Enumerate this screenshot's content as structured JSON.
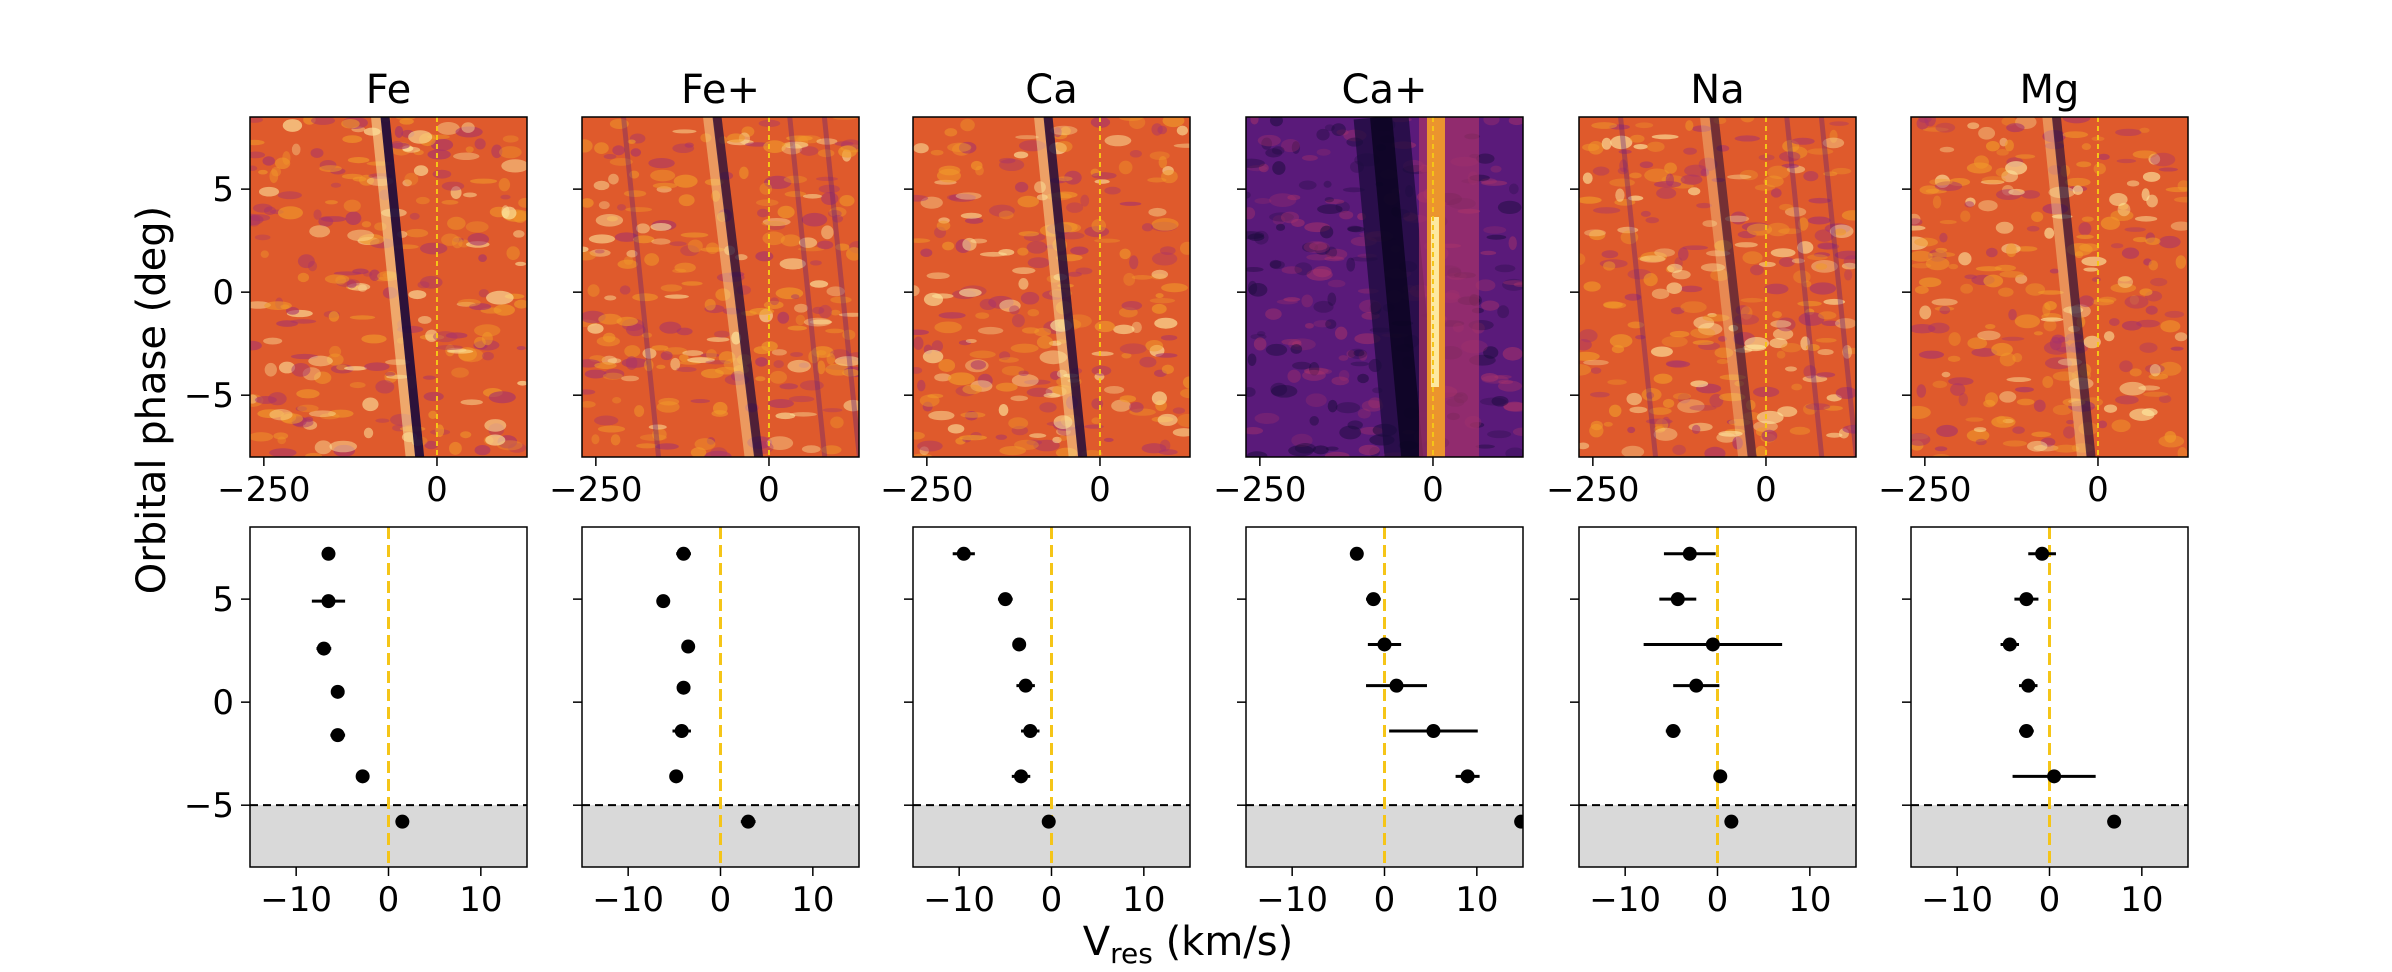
{
  "figure": {
    "ylabel": "Orbital phase (deg)",
    "xlabel_main": "V",
    "xlabel_sub": "res",
    "xlabel_unit": " (km/s)"
  },
  "colors": {
    "zero_line": "#f5c518",
    "points": "#000000",
    "shade": "#d9d9d9",
    "colormap": [
      "#1a0b3c",
      "#5a1a7a",
      "#a8336a",
      "#df5a2c",
      "#f09a2a",
      "#fde9a0"
    ]
  },
  "chart_data": [
    {
      "type": "heatmap",
      "title": "Fe",
      "xlim": [
        -270,
        130
      ],
      "ylim": [
        -8,
        8.5
      ],
      "xticks": [
        "-250",
        "0"
      ],
      "yticks": [
        "-5",
        "0",
        "5"
      ],
      "trail": {
        "v_at_top": -75,
        "v_at_bottom": -25,
        "kind": "absorption",
        "strength": 1.0
      },
      "background": "orange"
    },
    {
      "type": "heatmap",
      "title": "Fe+",
      "xlim": [
        -270,
        130
      ],
      "ylim": [
        -8,
        8.5
      ],
      "xticks": [
        "-250",
        "0"
      ],
      "yticks": [
        "-5",
        "0",
        "5"
      ],
      "trail": {
        "v_at_top": -75,
        "v_at_bottom": -15,
        "kind": "absorption",
        "strength": 0.8
      },
      "background": "orange"
    },
    {
      "type": "heatmap",
      "title": "Ca",
      "xlim": [
        -270,
        130
      ],
      "ylim": [
        -8,
        8.5
      ],
      "xticks": [
        "-250",
        "0"
      ],
      "yticks": [
        "-5",
        "0",
        "5"
      ],
      "trail": {
        "v_at_top": -75,
        "v_at_bottom": -25,
        "kind": "absorption",
        "strength": 0.9
      },
      "background": "orange"
    },
    {
      "type": "heatmap",
      "title": "Ca+",
      "xlim": [
        -270,
        130
      ],
      "ylim": [
        -8,
        8.5
      ],
      "xticks": [
        "-250",
        "0"
      ],
      "yticks": [
        "-5",
        "0",
        "5"
      ],
      "trail": {
        "v_at_top": -75,
        "v_at_bottom": -30,
        "kind": "broad",
        "strength": 1.0
      },
      "background": "purple"
    },
    {
      "type": "heatmap",
      "title": "Na",
      "xlim": [
        -270,
        130
      ],
      "ylim": [
        -8,
        8.5
      ],
      "xticks": [
        "-250",
        "0"
      ],
      "yticks": [
        "-5",
        "0",
        "5"
      ],
      "trail": {
        "v_at_top": -75,
        "v_at_bottom": -20,
        "kind": "absorption",
        "strength": 0.6
      },
      "background": "orange"
    },
    {
      "type": "heatmap",
      "title": "Mg",
      "xlim": [
        -270,
        130
      ],
      "ylim": [
        -8,
        8.5
      ],
      "xticks": [
        "-250",
        "0"
      ],
      "yticks": [
        "-5",
        "0",
        "5"
      ],
      "trail": {
        "v_at_top": -60,
        "v_at_bottom": -10,
        "kind": "absorption",
        "strength": 0.7
      },
      "background": "orange"
    },
    {
      "type": "scatter",
      "element": "Fe",
      "xlim": [
        -15,
        15
      ],
      "ylim": [
        -8,
        8.5
      ],
      "shade_below": -5,
      "xticks": [
        "-10",
        "0",
        "10"
      ],
      "yticks": [
        "-5",
        "0",
        "5"
      ],
      "points": [
        {
          "x": -6.5,
          "y": 7.2,
          "err": 0.3
        },
        {
          "x": -6.5,
          "y": 4.9,
          "err": 1.8
        },
        {
          "x": -7.0,
          "y": 2.6,
          "err": 0.8
        },
        {
          "x": -5.5,
          "y": 0.5,
          "err": 0.5
        },
        {
          "x": -5.5,
          "y": -1.6,
          "err": 0.8
        },
        {
          "x": -2.8,
          "y": -3.6,
          "err": 0.3
        },
        {
          "x": 1.5,
          "y": -5.8,
          "err": 0.3
        }
      ]
    },
    {
      "type": "scatter",
      "element": "Fe+",
      "xlim": [
        -15,
        15
      ],
      "ylim": [
        -8,
        8.5
      ],
      "shade_below": -5,
      "xticks": [
        "-10",
        "0",
        "10"
      ],
      "yticks": [
        "-5",
        "0",
        "5"
      ],
      "points": [
        {
          "x": -4.0,
          "y": 7.2,
          "err": 0.8
        },
        {
          "x": -6.2,
          "y": 4.9,
          "err": 0.3
        },
        {
          "x": -3.5,
          "y": 2.7,
          "err": 0.6
        },
        {
          "x": -4.0,
          "y": 0.7,
          "err": 0.3
        },
        {
          "x": -4.2,
          "y": -1.4,
          "err": 1.0
        },
        {
          "x": -4.8,
          "y": -3.6,
          "err": 0.3
        },
        {
          "x": 3.0,
          "y": -5.8,
          "err": 0.8
        }
      ]
    },
    {
      "type": "scatter",
      "element": "Ca",
      "xlim": [
        -15,
        15
      ],
      "ylim": [
        -8,
        8.5
      ],
      "shade_below": -5,
      "xticks": [
        "-10",
        "0",
        "10"
      ],
      "yticks": [
        "-5",
        "0",
        "5"
      ],
      "points": [
        {
          "x": -9.5,
          "y": 7.2,
          "err": 1.2
        },
        {
          "x": -5.0,
          "y": 5.0,
          "err": 0.8
        },
        {
          "x": -3.5,
          "y": 2.8,
          "err": 0.3
        },
        {
          "x": -2.8,
          "y": 0.8,
          "err": 1.0
        },
        {
          "x": -2.3,
          "y": -1.4,
          "err": 1.0
        },
        {
          "x": -3.3,
          "y": -3.6,
          "err": 1.0
        },
        {
          "x": -0.3,
          "y": -5.8,
          "err": 0.3
        }
      ]
    },
    {
      "type": "scatter",
      "element": "Ca+",
      "xlim": [
        -15,
        15
      ],
      "ylim": [
        -8,
        8.5
      ],
      "shade_below": -5,
      "xticks": [
        "-10",
        "0",
        "10"
      ],
      "yticks": [
        "-5",
        "0",
        "5"
      ],
      "points": [
        {
          "x": -3.0,
          "y": 7.2,
          "err": 0.3
        },
        {
          "x": -1.2,
          "y": 5.0,
          "err": 0.8
        },
        {
          "x": 0.0,
          "y": 2.8,
          "err": 1.8
        },
        {
          "x": 1.3,
          "y": 0.8,
          "err": 3.3
        },
        {
          "x": 5.3,
          "y": -1.4,
          "err": 4.8
        },
        {
          "x": 9.0,
          "y": -3.6,
          "err": 1.3
        },
        {
          "x": 14.8,
          "y": -5.8,
          "err": 0.3
        }
      ]
    },
    {
      "type": "scatter",
      "element": "Na",
      "xlim": [
        -15,
        15
      ],
      "ylim": [
        -8,
        8.5
      ],
      "shade_below": -5,
      "xticks": [
        "-10",
        "0",
        "10"
      ],
      "yticks": [
        "-5",
        "0",
        "5"
      ],
      "points": [
        {
          "x": -3.0,
          "y": 7.2,
          "err": 2.8
        },
        {
          "x": -4.3,
          "y": 5.0,
          "err": 2.0
        },
        {
          "x": -0.5,
          "y": 2.8,
          "err": 7.5
        },
        {
          "x": -2.3,
          "y": 0.8,
          "err": 2.5
        },
        {
          "x": -4.8,
          "y": -1.4,
          "err": 0.8
        },
        {
          "x": 0.3,
          "y": -3.6,
          "err": 0.3
        },
        {
          "x": 1.5,
          "y": -5.8,
          "err": 0.3
        }
      ]
    },
    {
      "type": "scatter",
      "element": "Mg",
      "xlim": [
        -15,
        15
      ],
      "ylim": [
        -8,
        8.5
      ],
      "shade_below": -5,
      "xticks": [
        "-10",
        "0",
        "10"
      ],
      "yticks": [
        "-5",
        "0",
        "5"
      ],
      "points": [
        {
          "x": -0.8,
          "y": 7.2,
          "err": 1.5
        },
        {
          "x": -2.5,
          "y": 5.0,
          "err": 1.3
        },
        {
          "x": -4.3,
          "y": 2.8,
          "err": 1.0
        },
        {
          "x": -2.3,
          "y": 0.8,
          "err": 1.0
        },
        {
          "x": -2.5,
          "y": -1.4,
          "err": 0.8
        },
        {
          "x": 0.5,
          "y": -3.6,
          "err": 4.5
        },
        {
          "x": 7.0,
          "y": -5.8,
          "err": 0.3
        }
      ]
    }
  ]
}
